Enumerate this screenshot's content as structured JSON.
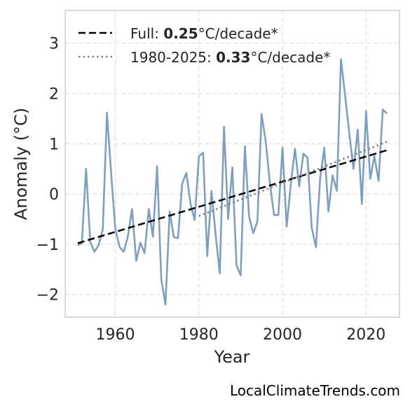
{
  "source": "LocalClimateTrends.com",
  "colors": {
    "series": "#7f9fc0",
    "trend_full": "#000000",
    "trend_recent": "#808080",
    "grid": "#d9d9d9",
    "frame": "#cccccc"
  },
  "legend": {
    "full": {
      "prefix": "Full: ",
      "value": "0.25",
      "suffix": "°C/decade*"
    },
    "recent": {
      "prefix": "1980-2025: ",
      "value": "0.33",
      "suffix": "°C/decade*"
    }
  },
  "chart_data": {
    "type": "line",
    "title": "",
    "xlabel": "Year",
    "ylabel": "Anomaly (°C)",
    "xlim": [
      1948,
      2028
    ],
    "ylim": [
      -2.45,
      3.65
    ],
    "xticks": [
      1960,
      1980,
      2000,
      2020
    ],
    "yticks": [
      -2,
      -1,
      0,
      1,
      2,
      3
    ],
    "ytick_labels": [
      "−2",
      "−1",
      "0",
      "1",
      "2",
      "3"
    ],
    "grid": true,
    "legend_position": "top-left",
    "series": [
      {
        "x": [
          1951,
          1952,
          1953,
          1954,
          1955,
          1956,
          1957,
          1958,
          1959,
          1960,
          1961,
          1962,
          1963,
          1964,
          1965,
          1966,
          1967,
          1968,
          1969,
          1970,
          1971,
          1972,
          1973,
          1974,
          1975,
          1976,
          1977,
          1978,
          1979,
          1980,
          1981,
          1982,
          1983,
          1984,
          1985,
          1986,
          1987,
          1988,
          1989,
          1990,
          1991,
          1992,
          1993,
          1994,
          1995,
          1996,
          1997,
          1998,
          1999,
          2000,
          2001,
          2002,
          2003,
          2004,
          2005,
          2006,
          2007,
          2008,
          2009,
          2010,
          2011,
          2012,
          2013,
          2014,
          2015,
          2016,
          2017,
          2018,
          2019,
          2020,
          2021,
          2022,
          2023,
          2024,
          2025
        ],
        "values": [
          -1.02,
          -0.98,
          0.5,
          -0.95,
          -1.15,
          -1.02,
          -0.7,
          1.62,
          0.4,
          -0.7,
          -1.05,
          -1.15,
          -0.85,
          -0.3,
          -1.33,
          -0.97,
          -1.18,
          -0.3,
          -0.85,
          0.55,
          -1.7,
          -2.2,
          -0.35,
          -0.86,
          -0.88,
          0.2,
          0.42,
          -0.2,
          -0.52,
          0.75,
          0.82,
          -1.24,
          0.06,
          -0.8,
          -1.58,
          1.34,
          -0.5,
          0.53,
          -1.42,
          -1.62,
          0.95,
          -0.45,
          -0.78,
          -0.55,
          1.59,
          1.04,
          0.2,
          -0.42,
          -0.42,
          0.92,
          -0.65,
          0.2,
          0.9,
          0.15,
          0.8,
          0.72,
          -0.67,
          -1.06,
          0.3,
          0.92,
          -0.35,
          0.37,
          0.06,
          2.68,
          1.95,
          1.2,
          0.5,
          1.28,
          -0.2,
          1.65,
          0.3,
          0.75,
          0.26,
          1.68,
          1.6
        ]
      }
    ],
    "trends": [
      {
        "name": "Full",
        "rate": 0.25,
        "x": [
          1951,
          2025
        ],
        "y": [
          -0.98,
          0.87
        ],
        "style": "dashed"
      },
      {
        "name": "1980-2025",
        "rate": 0.33,
        "x": [
          1980,
          2025
        ],
        "y": [
          -0.44,
          1.04
        ],
        "style": "dotted"
      }
    ]
  }
}
